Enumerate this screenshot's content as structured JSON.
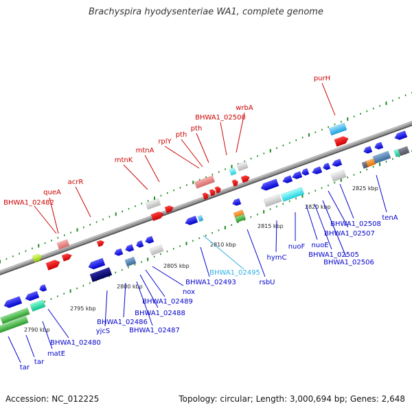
{
  "title": "Brachyspira hyodysenteriae WA1, complete genome",
  "accession": "Accession: NC_012225",
  "stats": "Topology: circular; Length: 3,000,694 bp; Genes: 2,648",
  "colors": {
    "backbone": "#9a9a9a",
    "dots": "#1f8a1f",
    "forward_label": "#cc0000",
    "reverse_label": "#0000cc",
    "highlight_label": "#2fb0e0"
  },
  "ticks": [
    "2790 kbp",
    "2795 kbp",
    "2800 kbp",
    "2805 kbp",
    "2810 kbp",
    "2815 kbp",
    "2820 kbp",
    "2825 kbp"
  ],
  "forward_labels": [
    "BHWA1_02482",
    "queA",
    "acrR",
    "mtnK",
    "mtnA",
    "rplY",
    "pth",
    "pth",
    "BHWA1_02500",
    "wrbA",
    "purH"
  ],
  "reverse_labels": [
    "tar",
    "tar",
    "matE",
    "BHWA1_02480",
    "yjcS",
    "BHWA1_02486",
    "BHWA1_02487",
    "BHWA1_02488",
    "BHWA1_02489",
    "nox",
    "BHWA1_02493",
    "BHWA1_02495",
    "rsbU",
    "hymC",
    "nuoF",
    "nuoE",
    "BHWA1_02505",
    "BHWA1_02506",
    "BHWA1_02507",
    "BHWA1_02508",
    "tenA"
  ]
}
